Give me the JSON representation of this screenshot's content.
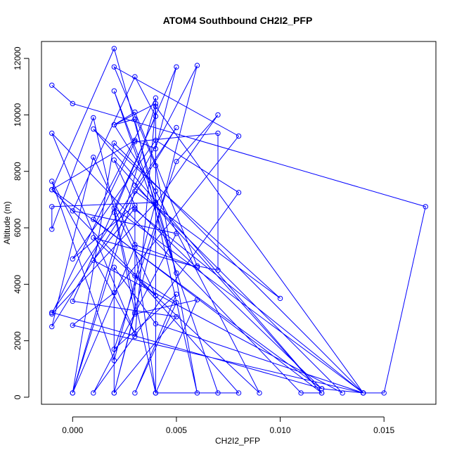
{
  "chart_data": {
    "type": "line",
    "title": "ATOM4 Southbound CH2I2_PFP",
    "xlabel": "CH2I2_PFP",
    "ylabel": "Altitude (m)",
    "xlim": [
      -0.0015,
      0.0175
    ],
    "ylim": [
      -250,
      12600
    ],
    "x_ticks": [
      0.0,
      0.005,
      0.01,
      0.015
    ],
    "x_tick_labels": [
      "0.000",
      "0.005",
      "0.010",
      "0.015"
    ],
    "y_ticks": [
      0,
      2000,
      4000,
      6000,
      8000,
      10000,
      12000
    ],
    "y_tick_labels": [
      "0",
      "2000",
      "4000",
      "6000",
      "8000",
      "10000",
      "12000"
    ],
    "grid": false,
    "legend": "none",
    "marker": "open-circle",
    "color": "#0000ff",
    "series": [
      {
        "x": [
          -0.001,
          0.0,
          0.017,
          0.015,
          0.014,
          0.012,
          -0.001,
          0.005,
          -0.001,
          0.001,
          0.003,
          0.006,
          0.001,
          0.009,
          0.004,
          0.002,
          0.004,
          0.0,
          0.003,
          0.01,
          0.001,
          0.012,
          0.002,
          0.003,
          0.0,
          0.004,
          0.008,
          0.001,
          0.005,
          0.0,
          0.003,
          0.004,
          0.0,
          0.005,
          0.002,
          0.006,
          0.003,
          0.013,
          0.001,
          0.003,
          0.012,
          -0.001,
          0.002,
          0.005,
          0.004,
          0.007,
          0.005,
          0.002,
          0.005,
          0.003,
          0.005,
          0.003,
          0.008,
          0.004,
          0.006,
          0.003,
          0.003,
          0.014,
          0.0,
          0.002,
          0.008,
          0.002,
          0.004,
          0.006,
          0.003,
          0.002,
          0.003,
          0.006,
          0.007,
          0.007,
          0.003,
          -0.001,
          0.004,
          0.002,
          -0.001,
          0.003,
          -0.001,
          0.011,
          0.012,
          0.001,
          0.004,
          0.004,
          0.001,
          -0.001,
          -0.001,
          0.004,
          0.002,
          0.007,
          0.004,
          0.003,
          0.0,
          0.002,
          0.014,
          0.004,
          0.002,
          0.002,
          0.003,
          0.002,
          0.005,
          0.004,
          0.003,
          -0.001,
          0.004,
          0.002,
          0.014,
          0.004,
          0.003
        ],
        "y": [
          11050,
          10400,
          6750,
          150,
          150,
          300,
          3000,
          9550,
          2500,
          8500,
          5400,
          4600,
          5650,
          150,
          7300,
          9650,
          10400,
          150,
          7300,
          3500,
          9500,
          150,
          8400,
          6800,
          4900,
          9100,
          7250,
          150,
          5800,
          6600,
          11350,
          9950,
          3400,
          2850,
          150,
          11750,
          7500,
          150,
          4850,
          6700,
          300,
          7350,
          12350,
          4400,
          6850,
          10000,
          8350,
          1700,
          3650,
          150,
          3350,
          4300,
          150,
          150,
          3450,
          2950,
          6650,
          150,
          2550,
          3700,
          9250,
          11700,
          8200,
          150,
          9850,
          9650,
          10100,
          4650,
          4500,
          9350,
          9050,
          2950,
          6900,
          1300,
          7650,
          2250,
          9350,
          150,
          150,
          6300,
          10600,
          150,
          9900,
          5950,
          6750,
          6900,
          10850,
          150,
          150,
          5300,
          150,
          9000,
          150,
          2600,
          4600,
          150,
          3000,
          6550,
          11700,
          8800,
          9100,
          7350,
          3600,
          6700,
          150,
          10300,
          2150
        ]
      }
    ]
  }
}
